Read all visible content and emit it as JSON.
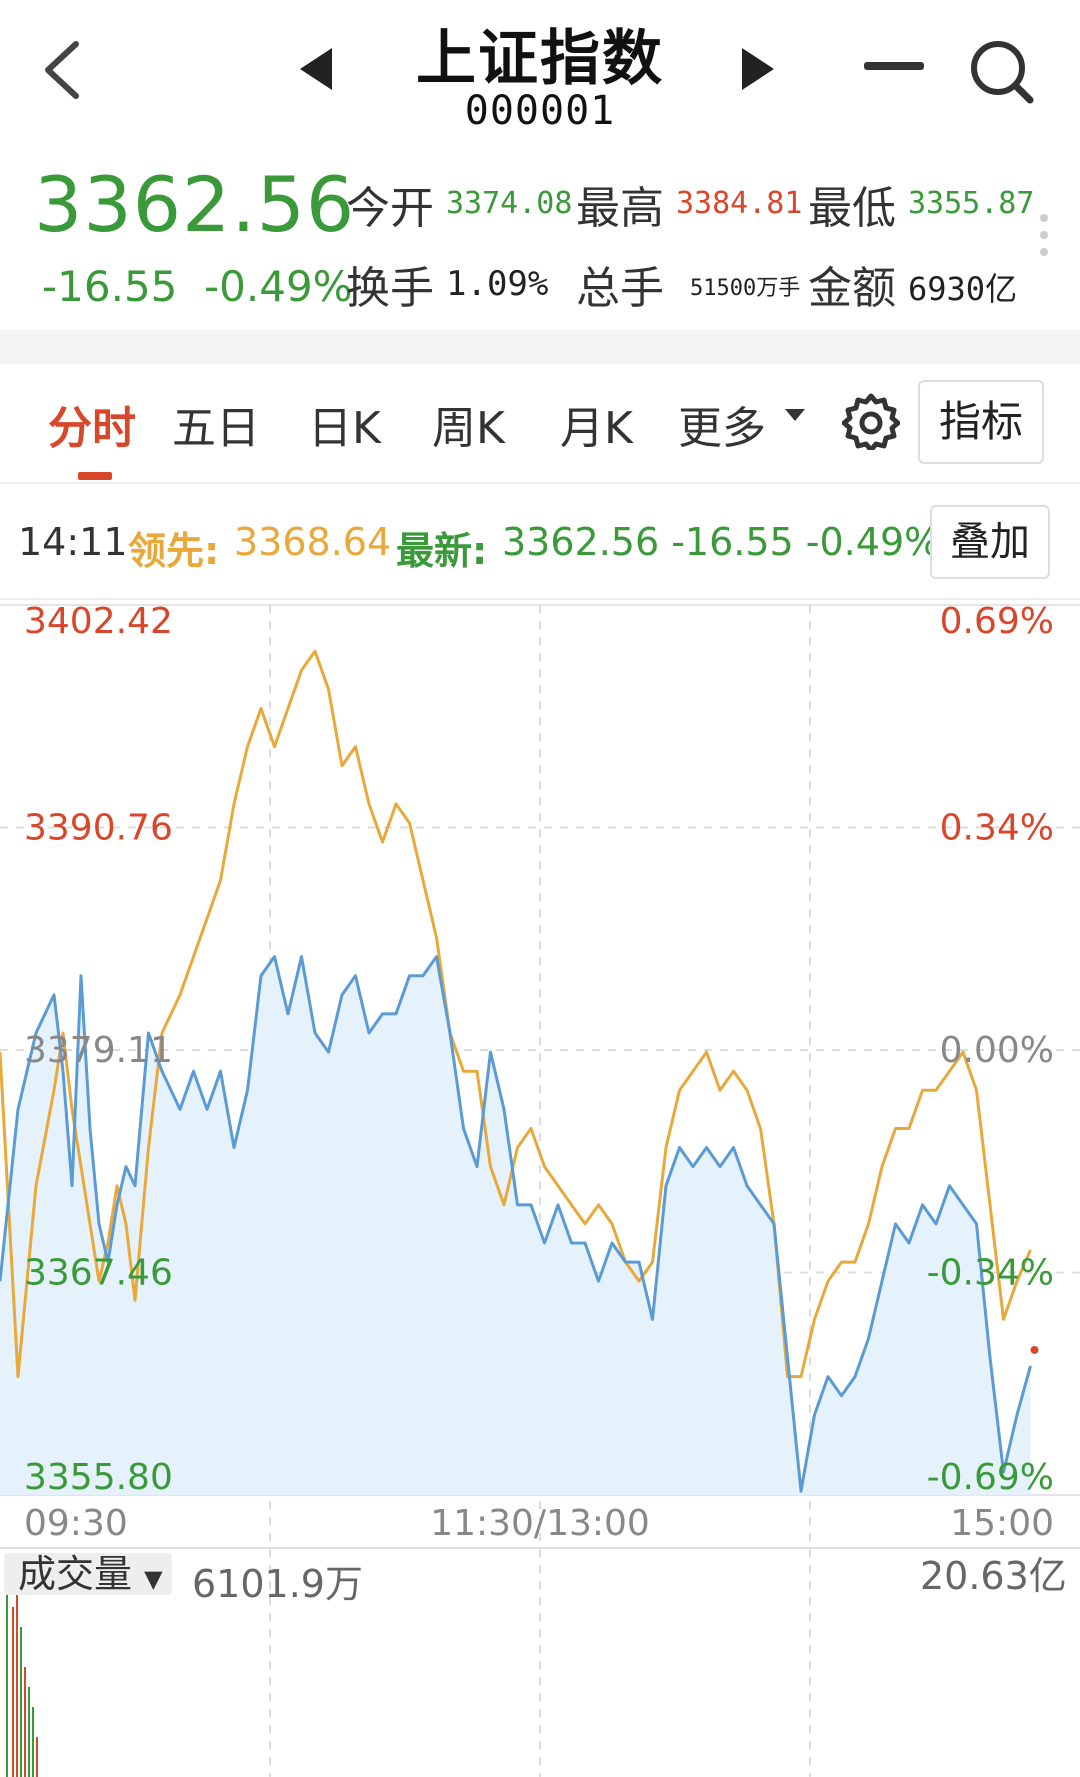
{
  "nav": {
    "title": "上证指数",
    "code": "000001"
  },
  "quote": {
    "price": "3362.56",
    "change": "-16.55",
    "change_pct": "-0.49%",
    "open_label": "今开",
    "open": "3374.08",
    "high_label": "最高",
    "high": "3384.81",
    "low_label": "最低",
    "low": "3355.87",
    "turnover_label": "换手",
    "turnover": "1.09%",
    "volume_label": "总手",
    "volume": "51500万手",
    "amount_label": "金额",
    "amount": "6930亿"
  },
  "tabs": [
    {
      "label": "分时",
      "active": true
    },
    {
      "label": "五日"
    },
    {
      "label": "日K"
    },
    {
      "label": "周K"
    },
    {
      "label": "月K"
    },
    {
      "label": "更多"
    }
  ],
  "indicator_button": "指标",
  "info_line": {
    "time": "14:11",
    "lead_label": "领先:",
    "lead_value": "3368.64",
    "latest_label": "最新:",
    "latest_value": "3362.56 -16.55 -0.49%"
  },
  "overlay_button": "叠加",
  "colors": {
    "up": "#d9472b",
    "down": "#3a9a3a",
    "price_line": "#5b9bd5",
    "lead_line": "#e8a93a",
    "fill": "#e6f2fb"
  },
  "chart_data": {
    "type": "line",
    "ylim": [
      3355.8,
      3402.42
    ],
    "prev_close": 3379.11,
    "y_ticks_left": [
      "3402.42",
      "3390.76",
      "3379.11",
      "3367.46",
      "3355.80"
    ],
    "y_ticks_right": [
      "0.69%",
      "0.34%",
      "0.00%",
      "-0.34%",
      "-0.69%"
    ],
    "x_ticks": [
      "09:30",
      "11:30/13:00",
      "15:00"
    ],
    "total_minutes": 240,
    "series": [
      {
        "name": "最新",
        "x": [
          0,
          4,
          8,
          12,
          14,
          16,
          18,
          20,
          22,
          24,
          26,
          28,
          30,
          33,
          36,
          40,
          43,
          46,
          49,
          52,
          55,
          58,
          61,
          64,
          67,
          70,
          73,
          76,
          79,
          82,
          85,
          88,
          91,
          94,
          97,
          100,
          103,
          106,
          109,
          112,
          115,
          118,
          121,
          124,
          127,
          130,
          133,
          136,
          139,
          142,
          145,
          148,
          151,
          154,
          157,
          160,
          163,
          166,
          169,
          172,
          175,
          178,
          181,
          184,
          187,
          190,
          193,
          196,
          199,
          202,
          205,
          208,
          211,
          214,
          217,
          220,
          223,
          226,
          229
        ],
        "values": [
          3367,
          3376,
          3380,
          3382,
          3378,
          3372,
          3383,
          3375,
          3370,
          3368,
          3371,
          3373,
          3372,
          3380,
          3378,
          3376,
          3378,
          3376,
          3378,
          3374,
          3377,
          3383,
          3384,
          3381,
          3384,
          3380,
          3379,
          3382,
          3383,
          3380,
          3381,
          3381,
          3383,
          3383,
          3384,
          3380,
          3375,
          3373,
          3379,
          3376,
          3371,
          3371,
          3369,
          3371,
          3369,
          3369,
          3367,
          3369,
          3368,
          3368,
          3365,
          3372,
          3374,
          3373,
          3374,
          3373,
          3374,
          3372,
          3371,
          3370,
          3363,
          3356,
          3360,
          3362,
          3361,
          3362,
          3364,
          3367,
          3370,
          3369,
          3371,
          3370,
          3372,
          3371,
          3370,
          3363,
          3357,
          3360,
          3362.56
        ]
      },
      {
        "name": "领先",
        "x": [
          0,
          4,
          8,
          12,
          14,
          16,
          18,
          20,
          22,
          24,
          26,
          28,
          30,
          33,
          36,
          40,
          43,
          46,
          49,
          52,
          55,
          58,
          61,
          64,
          67,
          70,
          73,
          76,
          79,
          82,
          85,
          88,
          91,
          94,
          97,
          100,
          103,
          106,
          109,
          112,
          115,
          118,
          121,
          124,
          127,
          130,
          133,
          136,
          139,
          142,
          145,
          148,
          151,
          154,
          157,
          160,
          163,
          166,
          169,
          172,
          175,
          178,
          181,
          184,
          187,
          190,
          193,
          196,
          199,
          202,
          205,
          208,
          211,
          214,
          217,
          220,
          223,
          226,
          229
        ],
        "values": [
          3379,
          3362,
          3372,
          3377,
          3380,
          3376,
          3373,
          3370,
          3367,
          3369,
          3372,
          3370,
          3366,
          3374,
          3380,
          3382,
          3384,
          3386,
          3388,
          3392,
          3395,
          3397,
          3395,
          3397,
          3399,
          3400,
          3398,
          3394,
          3395,
          3392,
          3390,
          3392,
          3391,
          3388,
          3385,
          3380,
          3378,
          3378,
          3373,
          3371,
          3374,
          3375,
          3373,
          3372,
          3371,
          3370,
          3371,
          3370,
          3368,
          3367,
          3368,
          3374,
          3377,
          3378,
          3379,
          3377,
          3378,
          3377,
          3375,
          3370,
          3362,
          3362,
          3365,
          3367,
          3368,
          3368,
          3370,
          3373,
          3375,
          3375,
          3377,
          3377,
          3378,
          3379,
          3377,
          3371,
          3365,
          3367,
          3368.64
        ]
      }
    ]
  },
  "volume": {
    "selector_label": "成交量",
    "current": "6101.9万",
    "max": "20.63亿"
  }
}
